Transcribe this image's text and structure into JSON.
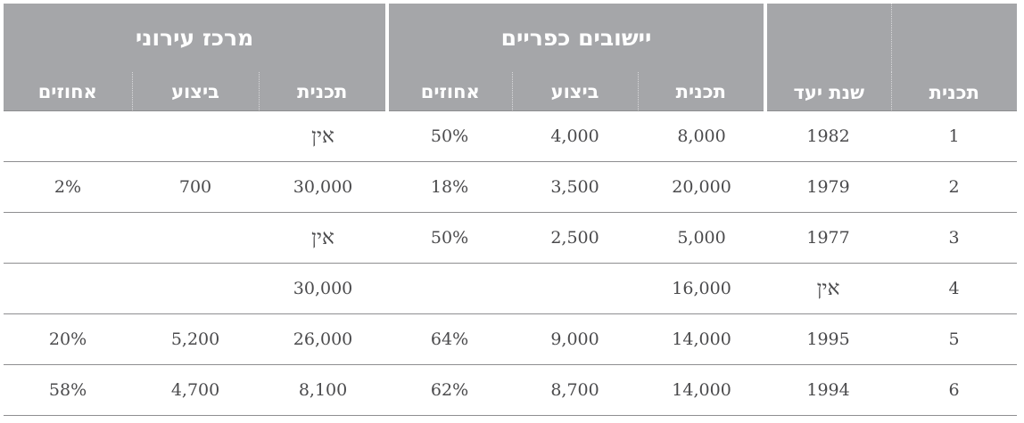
{
  "header": {
    "col_plan": "תכנית",
    "col_target_year": "שנת יעד",
    "group_villages": "יישובים כפריים",
    "group_urban": "מרכז עירוני",
    "sub_plan": "תכנית",
    "sub_execution": "ביצוע",
    "sub_percent": "אחוזים"
  },
  "rows": [
    {
      "plan": "1",
      "year": "1982",
      "v_plan": "8,000",
      "v_exec": "4,000",
      "v_pct": "50%",
      "u_plan": "אין",
      "u_exec": "",
      "u_pct": ""
    },
    {
      "plan": "2",
      "year": "1979",
      "v_plan": "20,000",
      "v_exec": "3,500",
      "v_pct": "18%",
      "u_plan": "30,000",
      "u_exec": "700",
      "u_pct": "2%"
    },
    {
      "plan": "3",
      "year": "1977",
      "v_plan": "5,000",
      "v_exec": "2,500",
      "v_pct": "50%",
      "u_plan": "אין",
      "u_exec": "",
      "u_pct": ""
    },
    {
      "plan": "4",
      "year": "אין",
      "v_plan": "16,000",
      "v_exec": "",
      "v_pct": "",
      "u_plan": "30,000",
      "u_exec": "",
      "u_pct": ""
    },
    {
      "plan": "5",
      "year": "1995",
      "v_plan": "14,000",
      "v_exec": "9,000",
      "v_pct": "64%",
      "u_plan": "26,000",
      "u_exec": "5,200",
      "u_pct": "20%"
    },
    {
      "plan": "6",
      "year": "1994",
      "v_plan": "14,000",
      "v_exec": "8,700",
      "v_pct": "62%",
      "u_plan": "8,100",
      "u_exec": "4,700",
      "u_pct": "58%"
    }
  ]
}
